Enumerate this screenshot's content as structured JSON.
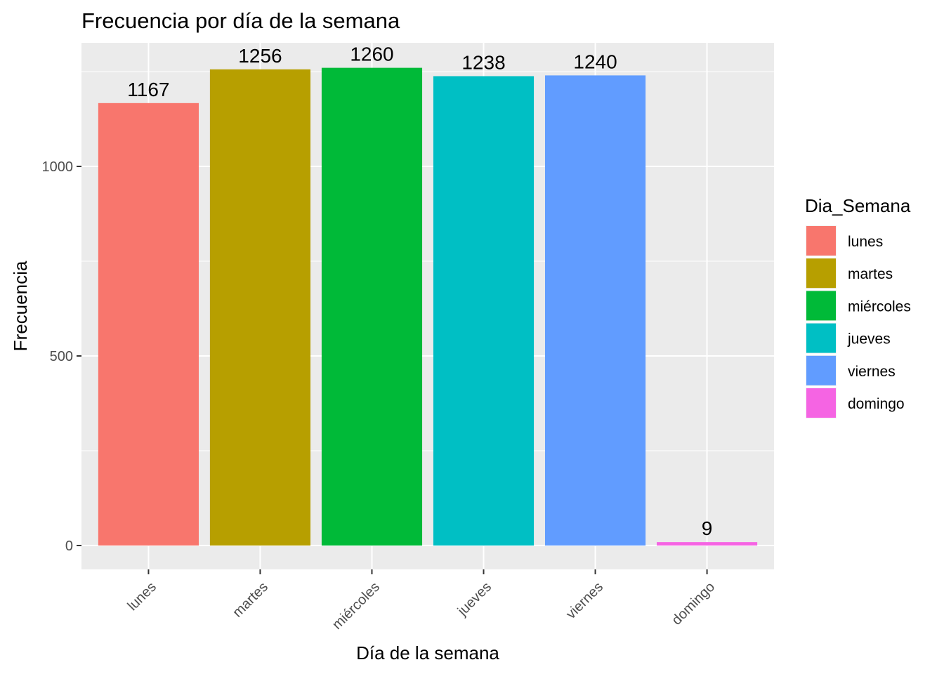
{
  "chart_data": {
    "type": "bar",
    "title": "Frecuencia por día de la semana",
    "xlabel": "Día de la semana",
    "ylabel": "Frecuencia",
    "categories": [
      "lunes",
      "martes",
      "miércoles",
      "jueves",
      "viernes",
      "domingo"
    ],
    "values": [
      1167,
      1256,
      1260,
      1238,
      1240,
      9
    ],
    "data_labels": [
      "1167",
      "1256",
      "1260",
      "1238",
      "1240",
      "9"
    ],
    "colors": [
      "#F8766D",
      "#B79F00",
      "#00BA38",
      "#00BFC4",
      "#619CFF",
      "#F564E3"
    ],
    "y_ticks": [
      0,
      500,
      1000
    ],
    "y_tick_labels": [
      "0",
      "500",
      "1000"
    ],
    "ylim": [
      -60,
      1320
    ],
    "grid": true,
    "panel_background": "#EBEBEB",
    "legend": {
      "title": "Dia_Semana",
      "position": "right",
      "entries": [
        "lunes",
        "martes",
        "miércoles",
        "jueves",
        "viernes",
        "domingo"
      ]
    }
  }
}
